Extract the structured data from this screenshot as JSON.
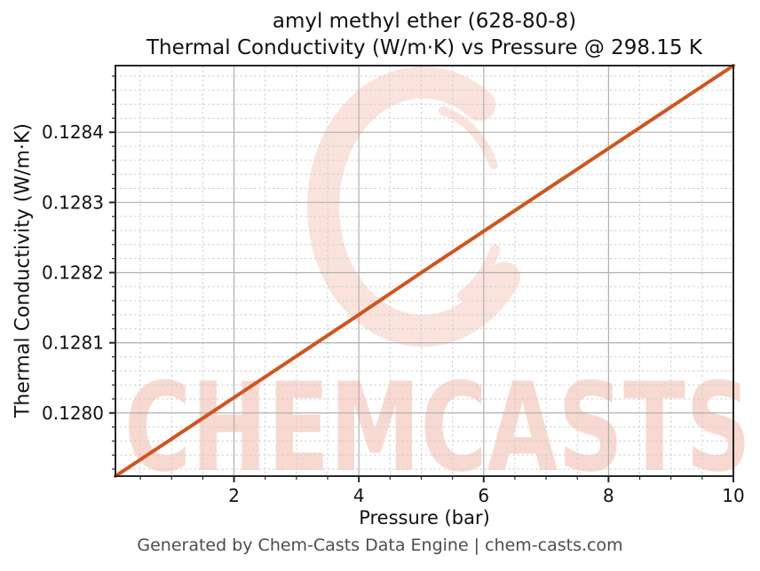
{
  "chart_data": {
    "type": "line",
    "title_line1": "amyl methyl ether (628-80-8)",
    "title_line2": "Thermal Conductivity (W/m·K) vs Pressure @ 298.15 K",
    "xlabel": "Pressure (bar)",
    "ylabel": "Thermal Conductivity (W/m·K)",
    "xlim": [
      0.1,
      10
    ],
    "ylim": [
      0.12791,
      0.128495
    ],
    "x_major_ticks": [
      2,
      4,
      6,
      8,
      10
    ],
    "x_tick_labels": [
      "2",
      "4",
      "6",
      "8",
      "10"
    ],
    "x_minor_step": 0.5,
    "y_major_ticks": [
      0.128,
      0.1281,
      0.1282,
      0.1283,
      0.1284
    ],
    "y_tick_labels": [
      "0.1280",
      "0.1281",
      "0.1282",
      "0.1283",
      "0.1284"
    ],
    "y_minor_step": 2e-05,
    "grid": {
      "major": "solid",
      "minor": "dashed"
    },
    "legend": "none",
    "series": [
      {
        "name": "Thermal Conductivity",
        "color": "#d1541f",
        "x": [
          0.1,
          1,
          2,
          3,
          4,
          5,
          6,
          7,
          8,
          9,
          10
        ],
        "y": [
          0.12791,
          0.127963,
          0.128022,
          0.128081,
          0.12814,
          0.1282,
          0.128259,
          0.128318,
          0.128377,
          0.128436,
          0.128495
        ]
      }
    ]
  },
  "watermark": {
    "text": "CHEMCASTS"
  },
  "footer": {
    "credit": "Generated by Chem-Casts Data Engine | chem-casts.com"
  },
  "colors": {
    "line": "#d1541f",
    "grid_major": "#b0b0b0",
    "grid_minor": "#cfcfcf",
    "spine": "#262626",
    "text": "#111111",
    "footer_text": "#4d4d4d",
    "watermark": "#f8d9d1",
    "watermark_ring": "#fae3dc"
  }
}
